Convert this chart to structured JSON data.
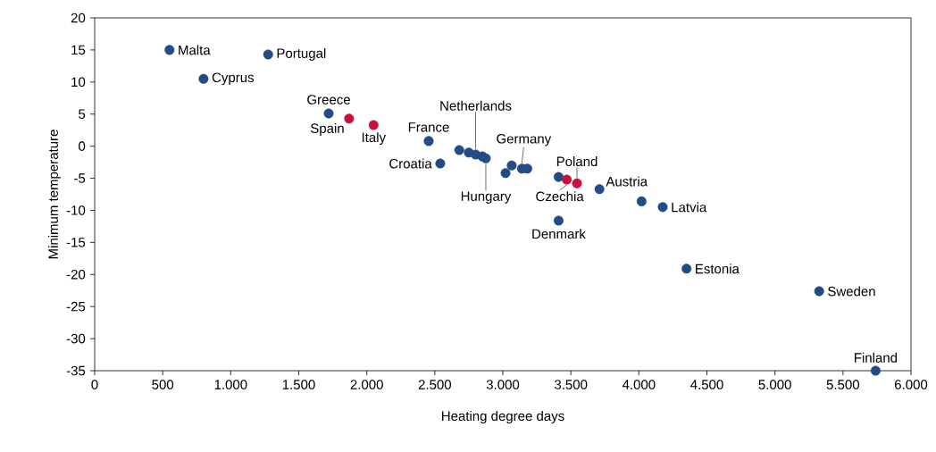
{
  "chart_data": {
    "type": "scatter",
    "xlabel": "Heating degree days",
    "ylabel": "Minimum temperature",
    "xlim": [
      0,
      6000
    ],
    "xticks": [
      0,
      500,
      {
        "value": 1000,
        "label": "1.000"
      },
      {
        "value": 1500,
        "label": "1.500"
      },
      {
        "value": 2000,
        "label": "2.000"
      },
      {
        "value": 2500,
        "label": "2.500"
      },
      {
        "value": 3000,
        "label": "3.000"
      },
      {
        "value": 3500,
        "label": "3.500"
      },
      {
        "value": 4000,
        "label": "4.000"
      },
      {
        "value": 4500,
        "label": "4.500"
      },
      {
        "value": 5000,
        "label": "5.000"
      },
      {
        "value": 5500,
        "label": "5.500"
      },
      {
        "value": 6000,
        "label": "6.000"
      }
    ],
    "ylim": [
      -35,
      20
    ],
    "yticks": [
      -35,
      -30,
      -25,
      -20,
      -15,
      -10,
      -5,
      0,
      5,
      10,
      15,
      20
    ],
    "marker": "circle",
    "series": [
      {
        "color": "#234c84",
        "x": [
          550,
          800,
          1275,
          1720,
          2455,
          2540,
          2680,
          2750,
          2800,
          2850,
          2875,
          3020,
          3065,
          3140,
          3180,
          3410,
          3410,
          3710,
          4020,
          4175,
          4350,
          5325,
          5740
        ],
        "values": [
          15,
          10.5,
          14.3,
          5.1,
          0.8,
          -2.7,
          -0.6,
          -1.0,
          -1.3,
          -1.6,
          -1.9,
          -4.2,
          -3.0,
          -3.5,
          -3.5,
          -4.8,
          -11.6,
          -6.7,
          -8.6,
          -9.5,
          -19.1,
          -22.6,
          -35
        ]
      },
      {
        "color": "#c8103e",
        "x": [
          1870,
          2050,
          3470,
          3545
        ],
        "values": [
          4.3,
          3.3,
          -5.2,
          -5.8
        ]
      }
    ],
    "annotations": [
      {
        "text": "Malta",
        "x": 550,
        "y": 15
      },
      {
        "text": "Portugal",
        "x": 1275,
        "y": 14.3
      },
      {
        "text": "Cyprus",
        "x": 800,
        "y": 10.5
      },
      {
        "text": "Greece",
        "x": 1720,
        "y": 5.1
      },
      {
        "text": "Spain",
        "x": 1870,
        "y": 4.3
      },
      {
        "text": "Italy",
        "x": 2050,
        "y": 3.3
      },
      {
        "text": "France",
        "x": 2455,
        "y": 0.8
      },
      {
        "text": "Croatia",
        "x": 2540,
        "y": -2.7
      },
      {
        "text": "Netherlands",
        "x": 2800,
        "y": -1.3
      },
      {
        "text": "Hungary",
        "x": 2875,
        "y": -1.9
      },
      {
        "text": "Germany",
        "x": 3140,
        "y": -3.5
      },
      {
        "text": "Poland",
        "x": 3545,
        "y": -5.8
      },
      {
        "text": "Czechia",
        "x": 3470,
        "y": -5.2
      },
      {
        "text": "Denmark",
        "x": 3410,
        "y": -11.6
      },
      {
        "text": "Austria",
        "x": 3710,
        "y": -6.7
      },
      {
        "text": "Latvia",
        "x": 4175,
        "y": -9.5
      },
      {
        "text": "Estonia",
        "x": 4350,
        "y": -19.1
      },
      {
        "text": "Sweden",
        "x": 5325,
        "y": -22.6
      },
      {
        "text": "Finland",
        "x": 5740,
        "y": -35
      }
    ]
  }
}
